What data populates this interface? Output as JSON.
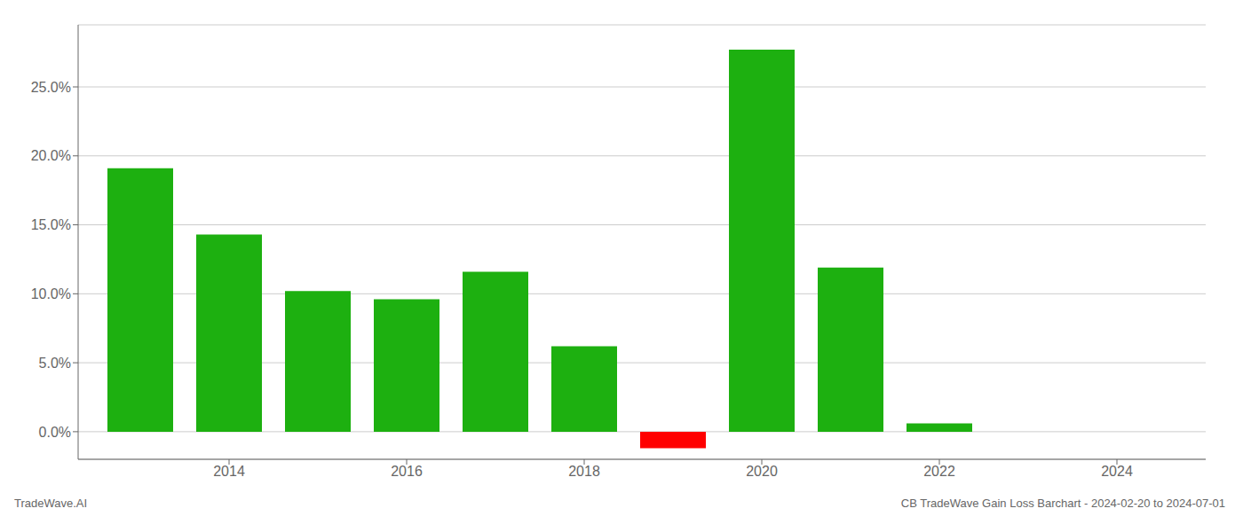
{
  "chart_data": {
    "type": "bar",
    "title": "CB TradeWave Gain Loss Barchart - 2024-02-20 to 2024-07-01",
    "annotations": [
      "TradeWave.AI"
    ],
    "x": [
      2013,
      2014,
      2015,
      2016,
      2017,
      2018,
      2019,
      2020,
      2021,
      2022,
      2023
    ],
    "values": [
      0.191,
      0.143,
      0.102,
      0.096,
      0.116,
      0.062,
      -0.012,
      0.277,
      0.119,
      0.006,
      0.0
    ],
    "colors": [
      "#1db010",
      "#1db010",
      "#1db010",
      "#1db010",
      "#1db010",
      "#1db010",
      "#ff0000",
      "#1db010",
      "#1db010",
      "#1db010",
      "#1db010"
    ],
    "xlim": [
      2012.3,
      2025.0
    ],
    "xticks": [
      2014,
      2016,
      2018,
      2020,
      2022,
      2024
    ],
    "ylim": [
      -0.02,
      0.295
    ],
    "yticks": [
      {
        "value": 0.0,
        "label": "0.0%"
      },
      {
        "value": 0.05,
        "label": "5.0%"
      },
      {
        "value": 0.1,
        "label": "10.0%"
      },
      {
        "value": 0.15,
        "label": "15.0%"
      },
      {
        "value": 0.2,
        "label": "20.0%"
      },
      {
        "value": 0.25,
        "label": "25.0%"
      }
    ],
    "grid": true
  }
}
